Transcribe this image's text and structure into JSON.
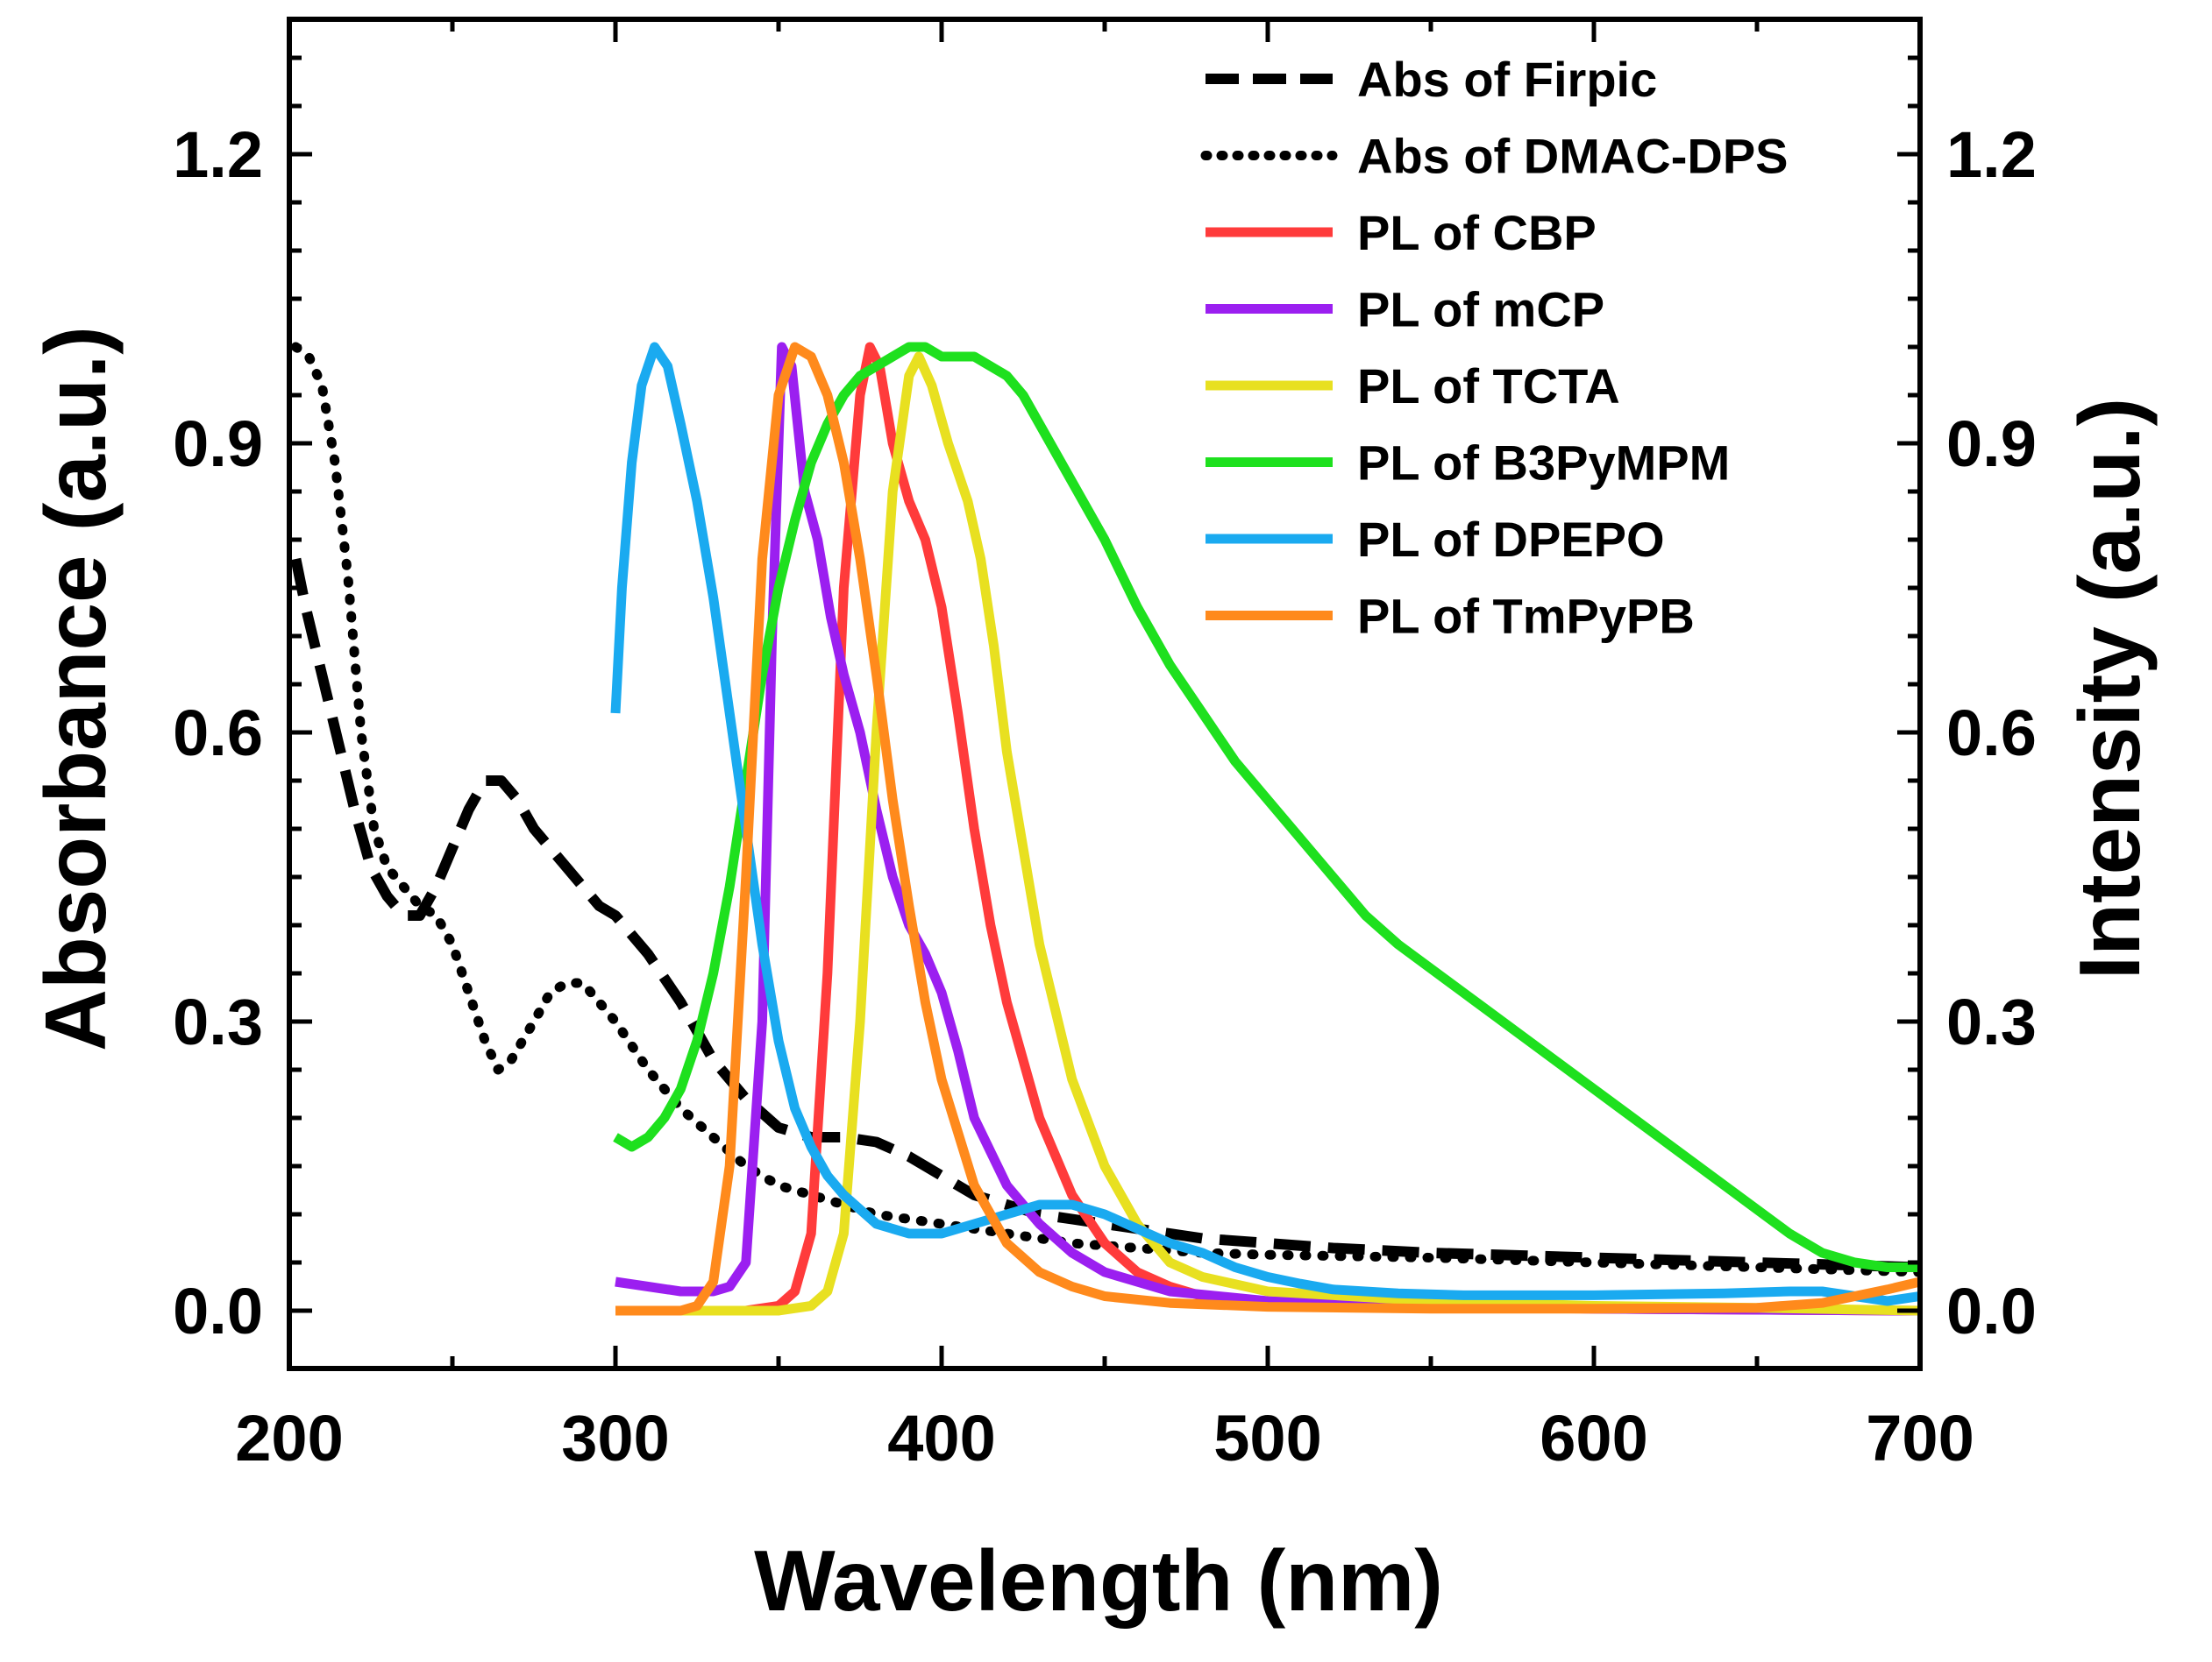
{
  "chart_data": {
    "type": "line",
    "title": "",
    "xlabel": "Wavelength (nm)",
    "ylabel_left": "Absorbance (a.u.)",
    "ylabel_right": "Intensity (a.u.)",
    "xlim": [
      200,
      700
    ],
    "ylim": [
      -0.06,
      1.34
    ],
    "x_ticks": [
      200,
      300,
      400,
      500,
      600,
      700
    ],
    "x_tick_labels": [
      "200",
      "300",
      "400",
      "500",
      "600",
      "700"
    ],
    "y_ticks": [
      0.0,
      0.3,
      0.6,
      0.9,
      1.2
    ],
    "y_tick_labels": [
      "0.0",
      "0.3",
      "0.6",
      "0.9",
      "1.2"
    ],
    "legend_position": "top-right",
    "series": [
      {
        "name": "Abs of Firpic",
        "color": "#000000",
        "style": "dash",
        "points": [
          [
            202,
            0.78
          ],
          [
            205,
            0.73
          ],
          [
            210,
            0.66
          ],
          [
            215,
            0.59
          ],
          [
            220,
            0.52
          ],
          [
            225,
            0.46
          ],
          [
            230,
            0.43
          ],
          [
            235,
            0.41
          ],
          [
            240,
            0.41
          ],
          [
            245,
            0.44
          ],
          [
            250,
            0.48
          ],
          [
            255,
            0.52
          ],
          [
            260,
            0.55
          ],
          [
            265,
            0.55
          ],
          [
            270,
            0.53
          ],
          [
            275,
            0.5
          ],
          [
            280,
            0.48
          ],
          [
            285,
            0.46
          ],
          [
            290,
            0.44
          ],
          [
            295,
            0.42
          ],
          [
            300,
            0.41
          ],
          [
            310,
            0.37
          ],
          [
            320,
            0.32
          ],
          [
            330,
            0.26
          ],
          [
            340,
            0.22
          ],
          [
            350,
            0.19
          ],
          [
            360,
            0.18
          ],
          [
            370,
            0.18
          ],
          [
            380,
            0.175
          ],
          [
            390,
            0.16
          ],
          [
            400,
            0.14
          ],
          [
            410,
            0.12
          ],
          [
            420,
            0.11
          ],
          [
            430,
            0.1
          ],
          [
            440,
            0.095
          ],
          [
            450,
            0.09
          ],
          [
            460,
            0.085
          ],
          [
            480,
            0.075
          ],
          [
            500,
            0.07
          ],
          [
            520,
            0.065
          ],
          [
            550,
            0.06
          ],
          [
            600,
            0.055
          ],
          [
            650,
            0.05
          ],
          [
            700,
            0.045
          ]
        ]
      },
      {
        "name": "Abs of DMAC-DPS",
        "color": "#000000",
        "style": "dot",
        "points": [
          [
            202,
            1.0
          ],
          [
            206,
            0.99
          ],
          [
            210,
            0.96
          ],
          [
            214,
            0.88
          ],
          [
            218,
            0.76
          ],
          [
            222,
            0.6
          ],
          [
            226,
            0.5
          ],
          [
            230,
            0.46
          ],
          [
            235,
            0.44
          ],
          [
            240,
            0.42
          ],
          [
            245,
            0.41
          ],
          [
            250,
            0.38
          ],
          [
            255,
            0.33
          ],
          [
            260,
            0.28
          ],
          [
            264,
            0.25
          ],
          [
            268,
            0.26
          ],
          [
            275,
            0.3
          ],
          [
            280,
            0.33
          ],
          [
            285,
            0.34
          ],
          [
            290,
            0.34
          ],
          [
            295,
            0.32
          ],
          [
            300,
            0.3
          ],
          [
            310,
            0.25
          ],
          [
            320,
            0.21
          ],
          [
            330,
            0.18
          ],
          [
            340,
            0.15
          ],
          [
            350,
            0.13
          ],
          [
            360,
            0.12
          ],
          [
            370,
            0.11
          ],
          [
            380,
            0.1
          ],
          [
            390,
            0.095
          ],
          [
            400,
            0.09
          ],
          [
            420,
            0.08
          ],
          [
            440,
            0.07
          ],
          [
            460,
            0.065
          ],
          [
            480,
            0.06
          ],
          [
            500,
            0.058
          ],
          [
            550,
            0.055
          ],
          [
            600,
            0.05
          ],
          [
            650,
            0.045
          ],
          [
            700,
            0.04
          ]
        ]
      },
      {
        "name": "PL of CBP",
        "color": "#FF3B3B",
        "style": "solid",
        "points": [
          [
            300,
            0.0
          ],
          [
            340,
            0.0
          ],
          [
            350,
            0.005
          ],
          [
            355,
            0.02
          ],
          [
            360,
            0.08
          ],
          [
            365,
            0.35
          ],
          [
            370,
            0.75
          ],
          [
            375,
            0.95
          ],
          [
            378,
            1.0
          ],
          [
            381,
            0.98
          ],
          [
            385,
            0.9
          ],
          [
            390,
            0.84
          ],
          [
            395,
            0.8
          ],
          [
            400,
            0.73
          ],
          [
            405,
            0.62
          ],
          [
            410,
            0.5
          ],
          [
            415,
            0.4
          ],
          [
            420,
            0.32
          ],
          [
            430,
            0.2
          ],
          [
            440,
            0.12
          ],
          [
            450,
            0.07
          ],
          [
            460,
            0.04
          ],
          [
            470,
            0.025
          ],
          [
            480,
            0.015
          ],
          [
            500,
            0.008
          ],
          [
            550,
            0.004
          ],
          [
            600,
            0.002
          ],
          [
            650,
            0.001
          ],
          [
            700,
            0.0
          ]
        ]
      },
      {
        "name": "PL of mCP",
        "color": "#9B1FF0",
        "style": "solid",
        "points": [
          [
            300,
            0.03
          ],
          [
            310,
            0.025
          ],
          [
            320,
            0.02
          ],
          [
            330,
            0.02
          ],
          [
            335,
            0.025
          ],
          [
            340,
            0.05
          ],
          [
            345,
            0.3
          ],
          [
            348,
            0.7
          ],
          [
            351,
            1.0
          ],
          [
            354,
            0.98
          ],
          [
            358,
            0.85
          ],
          [
            362,
            0.8
          ],
          [
            366,
            0.72
          ],
          [
            370,
            0.66
          ],
          [
            375,
            0.6
          ],
          [
            380,
            0.52
          ],
          [
            385,
            0.45
          ],
          [
            390,
            0.4
          ],
          [
            395,
            0.37
          ],
          [
            400,
            0.33
          ],
          [
            405,
            0.27
          ],
          [
            410,
            0.2
          ],
          [
            420,
            0.13
          ],
          [
            430,
            0.09
          ],
          [
            440,
            0.06
          ],
          [
            450,
            0.04
          ],
          [
            470,
            0.02
          ],
          [
            500,
            0.01
          ],
          [
            550,
            0.005
          ],
          [
            600,
            0.002
          ],
          [
            700,
            0.0
          ]
        ]
      },
      {
        "name": "PL of TCTA",
        "color": "#E8E020",
        "style": "solid",
        "points": [
          [
            300,
            0.0
          ],
          [
            350,
            0.0
          ],
          [
            360,
            0.005
          ],
          [
            365,
            0.02
          ],
          [
            370,
            0.08
          ],
          [
            375,
            0.3
          ],
          [
            380,
            0.6
          ],
          [
            385,
            0.85
          ],
          [
            390,
            0.97
          ],
          [
            393,
            0.99
          ],
          [
            397,
            0.96
          ],
          [
            402,
            0.9
          ],
          [
            408,
            0.84
          ],
          [
            412,
            0.78
          ],
          [
            416,
            0.69
          ],
          [
            420,
            0.58
          ],
          [
            430,
            0.38
          ],
          [
            440,
            0.24
          ],
          [
            450,
            0.15
          ],
          [
            460,
            0.09
          ],
          [
            470,
            0.05
          ],
          [
            480,
            0.035
          ],
          [
            500,
            0.02
          ],
          [
            550,
            0.01
          ],
          [
            600,
            0.005
          ],
          [
            650,
            0.003
          ],
          [
            700,
            0.0
          ]
        ]
      },
      {
        "name": "PL of B3PyMPM",
        "color": "#1EE01E",
        "style": "solid",
        "points": [
          [
            300,
            0.18
          ],
          [
            305,
            0.17
          ],
          [
            310,
            0.18
          ],
          [
            315,
            0.2
          ],
          [
            320,
            0.23
          ],
          [
            325,
            0.28
          ],
          [
            330,
            0.35
          ],
          [
            335,
            0.44
          ],
          [
            340,
            0.55
          ],
          [
            345,
            0.66
          ],
          [
            350,
            0.75
          ],
          [
            355,
            0.82
          ],
          [
            360,
            0.88
          ],
          [
            365,
            0.92
          ],
          [
            370,
            0.95
          ],
          [
            375,
            0.97
          ],
          [
            380,
            0.98
          ],
          [
            385,
            0.99
          ],
          [
            390,
            1.0
          ],
          [
            395,
            1.0
          ],
          [
            400,
            0.99
          ],
          [
            405,
            0.99
          ],
          [
            410,
            0.99
          ],
          [
            415,
            0.98
          ],
          [
            420,
            0.97
          ],
          [
            425,
            0.95
          ],
          [
            430,
            0.92
          ],
          [
            435,
            0.89
          ],
          [
            440,
            0.86
          ],
          [
            450,
            0.8
          ],
          [
            460,
            0.73
          ],
          [
            470,
            0.67
          ],
          [
            480,
            0.62
          ],
          [
            490,
            0.57
          ],
          [
            500,
            0.53
          ],
          [
            510,
            0.49
          ],
          [
            520,
            0.45
          ],
          [
            530,
            0.41
          ],
          [
            540,
            0.38
          ],
          [
            560,
            0.33
          ],
          [
            580,
            0.28
          ],
          [
            600,
            0.23
          ],
          [
            620,
            0.18
          ],
          [
            640,
            0.13
          ],
          [
            660,
            0.08
          ],
          [
            670,
            0.06
          ],
          [
            680,
            0.05
          ],
          [
            690,
            0.045
          ],
          [
            700,
            0.045
          ]
        ]
      },
      {
        "name": "PL of DPEPO",
        "color": "#1AAAF0",
        "style": "solid",
        "points": [
          [
            300,
            0.62
          ],
          [
            302,
            0.75
          ],
          [
            305,
            0.88
          ],
          [
            308,
            0.96
          ],
          [
            312,
            1.0
          ],
          [
            316,
            0.98
          ],
          [
            320,
            0.92
          ],
          [
            325,
            0.84
          ],
          [
            330,
            0.74
          ],
          [
            335,
            0.62
          ],
          [
            340,
            0.5
          ],
          [
            345,
            0.38
          ],
          [
            350,
            0.28
          ],
          [
            355,
            0.21
          ],
          [
            360,
            0.17
          ],
          [
            365,
            0.14
          ],
          [
            370,
            0.12
          ],
          [
            380,
            0.09
          ],
          [
            390,
            0.08
          ],
          [
            400,
            0.08
          ],
          [
            410,
            0.09
          ],
          [
            420,
            0.1
          ],
          [
            430,
            0.11
          ],
          [
            440,
            0.11
          ],
          [
            450,
            0.1
          ],
          [
            460,
            0.085
          ],
          [
            470,
            0.07
          ],
          [
            480,
            0.06
          ],
          [
            490,
            0.045
          ],
          [
            500,
            0.035
          ],
          [
            510,
            0.028
          ],
          [
            520,
            0.022
          ],
          [
            540,
            0.018
          ],
          [
            560,
            0.016
          ],
          [
            600,
            0.016
          ],
          [
            640,
            0.018
          ],
          [
            660,
            0.02
          ],
          [
            670,
            0.02
          ],
          [
            680,
            0.015
          ],
          [
            690,
            0.01
          ],
          [
            700,
            0.015
          ]
        ]
      },
      {
        "name": "PL of TmPyPB",
        "color": "#FF8A1C",
        "style": "solid",
        "points": [
          [
            300,
            0.0
          ],
          [
            320,
            0.0
          ],
          [
            325,
            0.005
          ],
          [
            330,
            0.03
          ],
          [
            335,
            0.15
          ],
          [
            340,
            0.45
          ],
          [
            345,
            0.78
          ],
          [
            350,
            0.95
          ],
          [
            355,
            1.0
          ],
          [
            360,
            0.99
          ],
          [
            365,
            0.95
          ],
          [
            370,
            0.88
          ],
          [
            375,
            0.78
          ],
          [
            380,
            0.66
          ],
          [
            385,
            0.53
          ],
          [
            390,
            0.42
          ],
          [
            395,
            0.32
          ],
          [
            400,
            0.24
          ],
          [
            410,
            0.13
          ],
          [
            420,
            0.07
          ],
          [
            430,
            0.04
          ],
          [
            440,
            0.025
          ],
          [
            450,
            0.015
          ],
          [
            470,
            0.008
          ],
          [
            500,
            0.004
          ],
          [
            550,
            0.002
          ],
          [
            600,
            0.002
          ],
          [
            650,
            0.003
          ],
          [
            670,
            0.008
          ],
          [
            680,
            0.015
          ],
          [
            690,
            0.022
          ],
          [
            700,
            0.03
          ]
        ]
      }
    ]
  }
}
